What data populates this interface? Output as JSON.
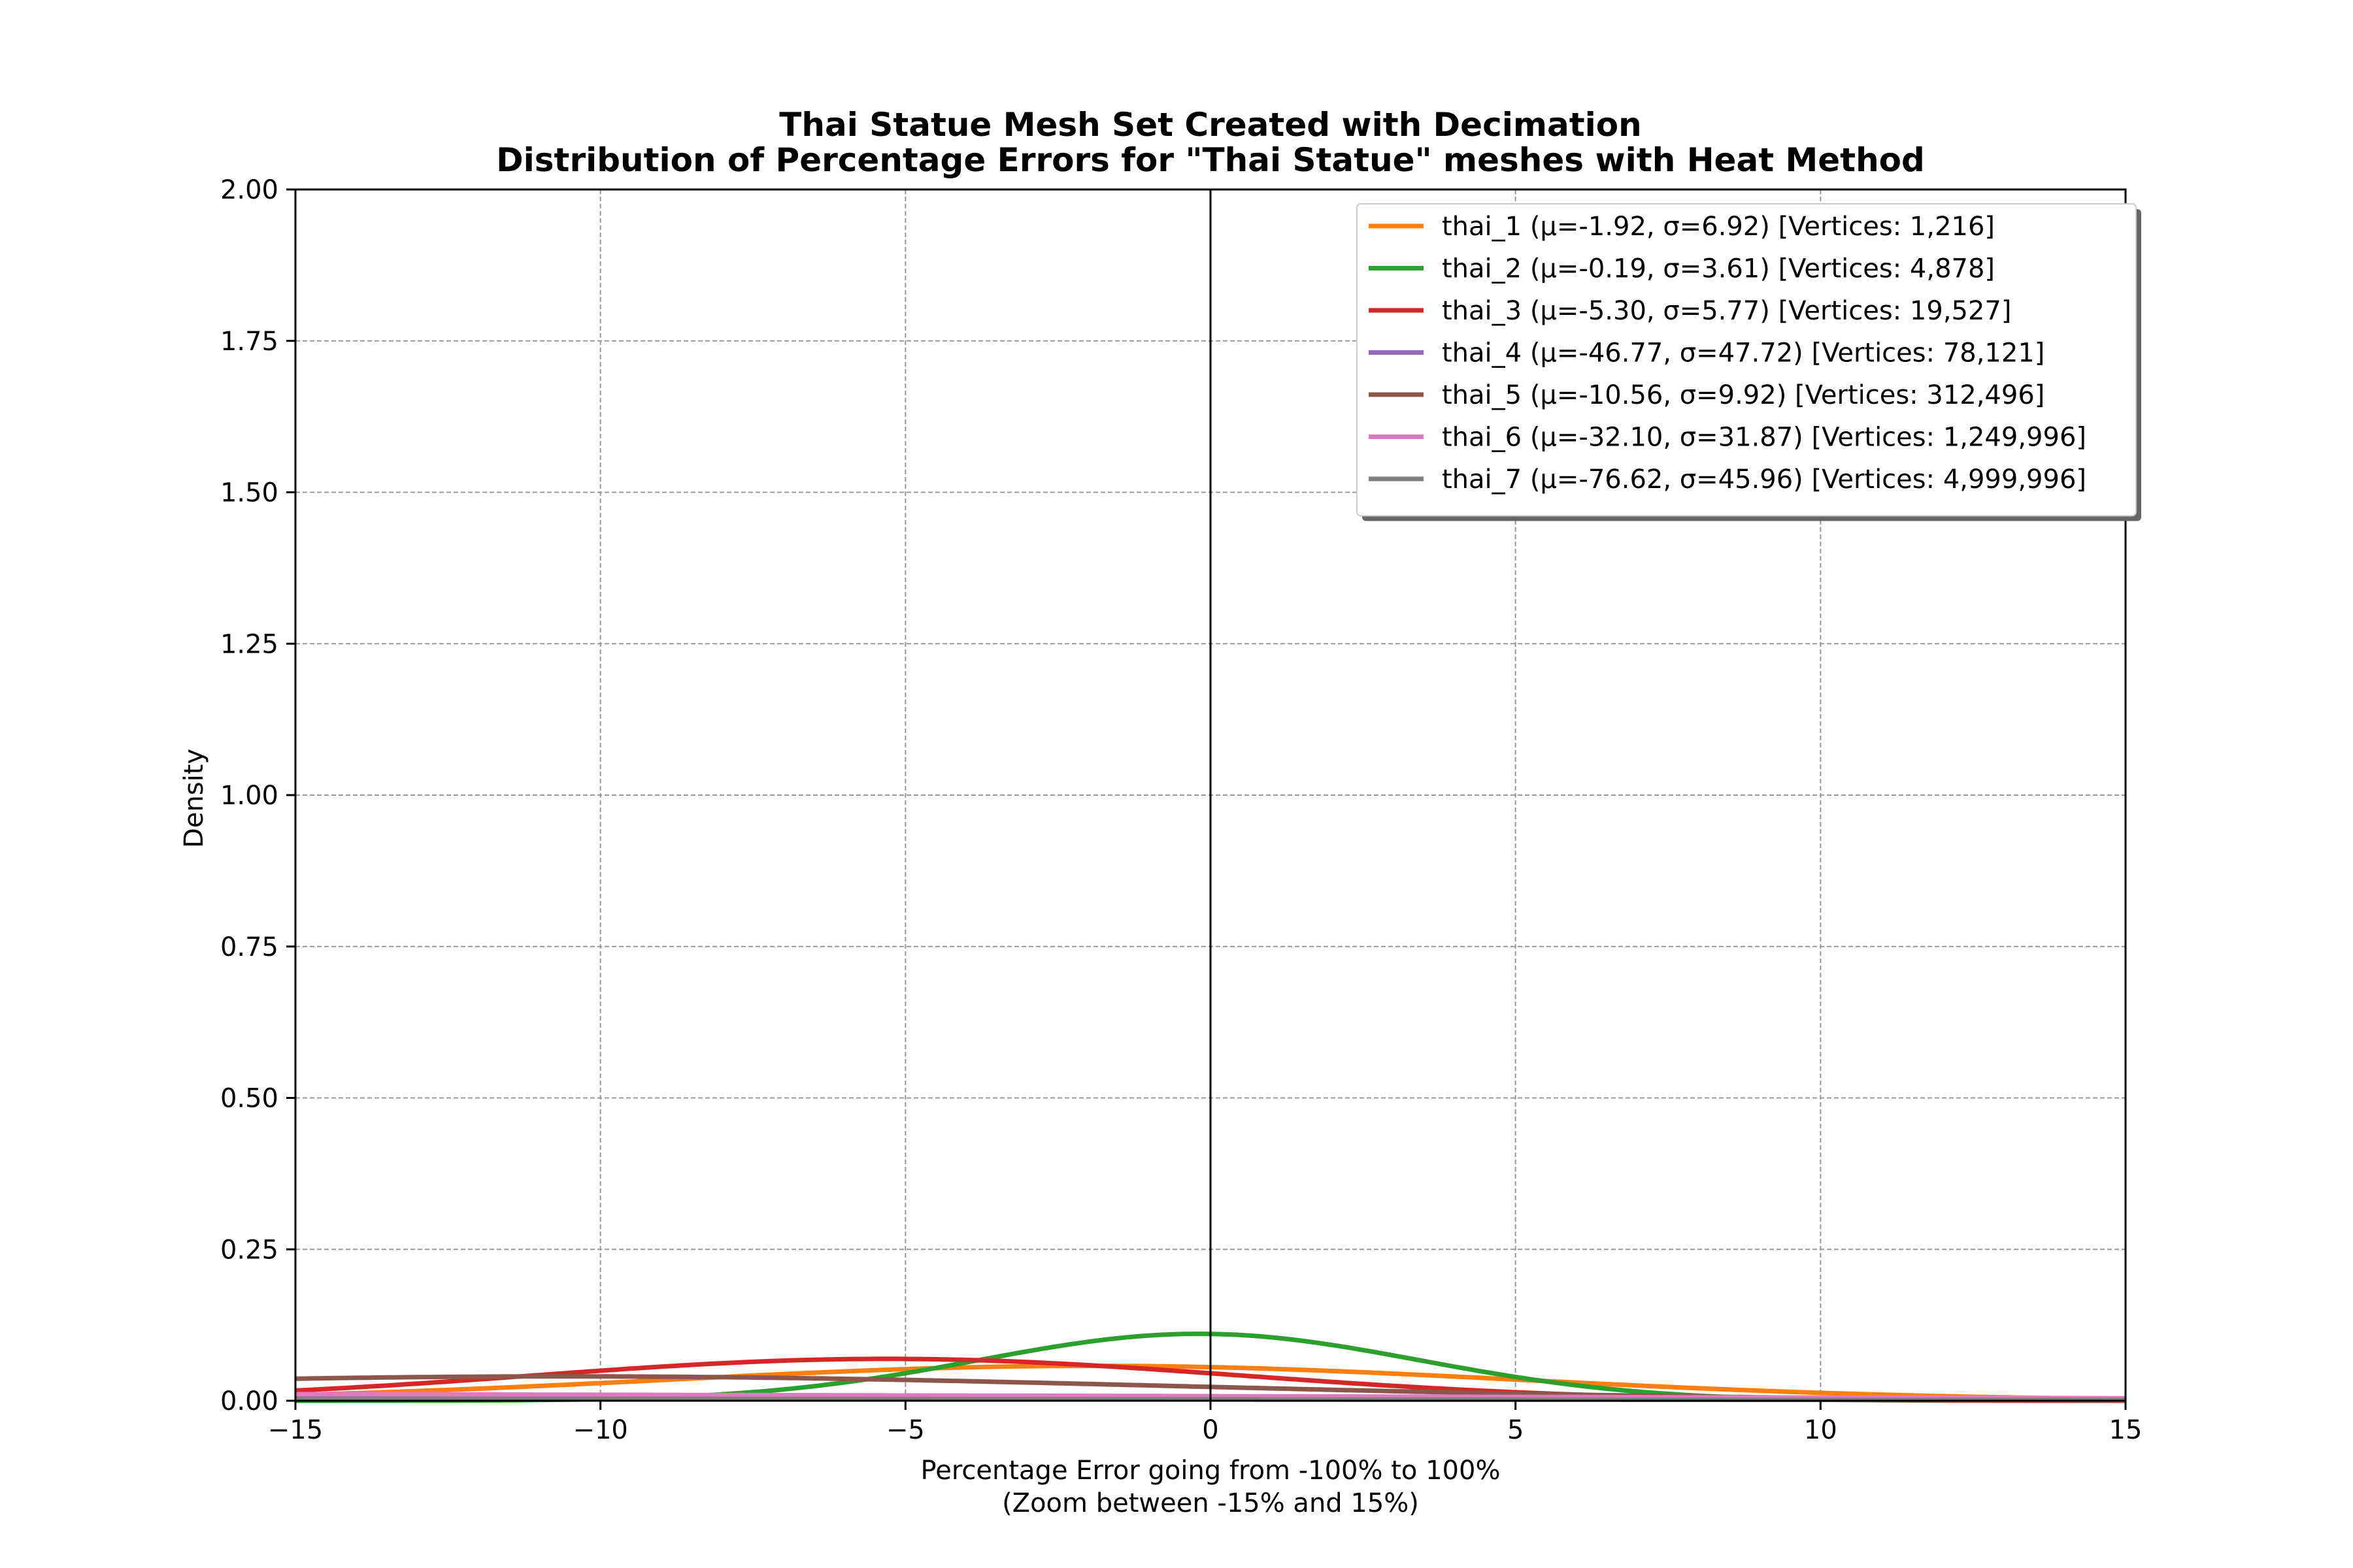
{
  "chart_data": {
    "type": "line",
    "title": "Thai Statue Mesh Set Created with Decimation",
    "subtitle": "Distribution of Percentage Errors for \"Thai Statue\" meshes with Heat Method",
    "xlabel": "Percentage Error going from -100% to 100%",
    "xlabel_note": "(Zoom between -15% and 15%)",
    "ylabel": "Density",
    "xlim": [
      -15,
      15
    ],
    "ylim": [
      0,
      2
    ],
    "x_ticks": [
      "−15",
      "−10",
      "−5",
      "0",
      "5",
      "10",
      "15"
    ],
    "y_ticks": [
      "0.00",
      "0.25",
      "0.50",
      "0.75",
      "1.00",
      "1.25",
      "1.50",
      "1.75",
      "2.00"
    ],
    "grid": true,
    "vertical_reference_line_x": 0,
    "legend_position": "top-right",
    "series": [
      {
        "name": "thai_1 (μ=-1.92, σ=6.92) [Vertices: 1,216]",
        "mu": -1.92,
        "sigma": 6.92,
        "color": "#ff7f0e"
      },
      {
        "name": "thai_2 (μ=-0.19, σ=3.61) [Vertices: 4,878]",
        "mu": -0.19,
        "sigma": 3.61,
        "color": "#2ca02c"
      },
      {
        "name": "thai_3 (μ=-5.30, σ=5.77) [Vertices: 19,527]",
        "mu": -5.3,
        "sigma": 5.77,
        "color": "#d62728"
      },
      {
        "name": "thai_4 (μ=-46.77, σ=47.72) [Vertices: 78,121]",
        "mu": -46.77,
        "sigma": 47.72,
        "color": "#9467bd"
      },
      {
        "name": "thai_5 (μ=-10.56, σ=9.92) [Vertices: 312,496]",
        "mu": -10.56,
        "sigma": 9.92,
        "color": "#8c564b"
      },
      {
        "name": "thai_6 (μ=-32.10, σ=31.87) [Vertices: 1,249,996]",
        "mu": -32.1,
        "sigma": 31.87,
        "color": "#e377c2"
      },
      {
        "name": "thai_7 (μ=-76.62, σ=45.96) [Vertices: 4,999,996]",
        "mu": -76.62,
        "sigma": 45.96,
        "color": "#7f7f7f"
      }
    ]
  }
}
